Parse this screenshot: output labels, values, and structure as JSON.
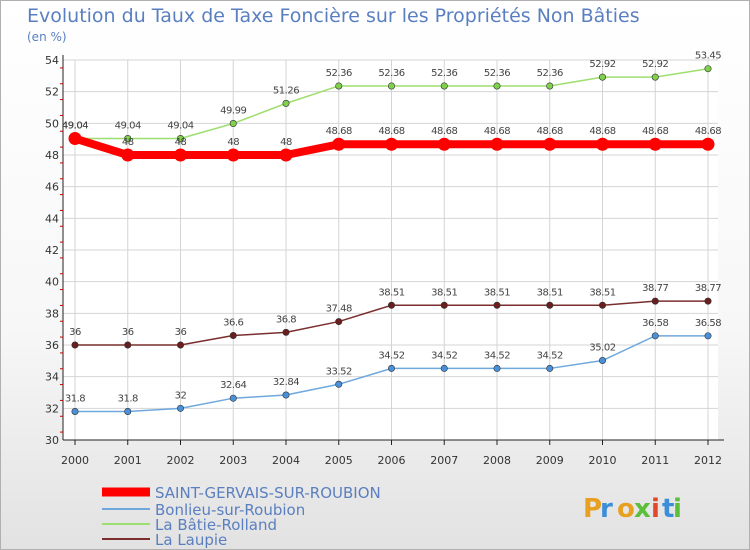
{
  "title": "Evolution du Taux de Taxe Foncière sur les Propriétés Non Bâties",
  "unit_label": "(en %)",
  "logo_text": "Proxiti",
  "chart_data": {
    "type": "line",
    "title": "Evolution du Taux de Taxe Foncière sur les Propriétés Non Bâties",
    "ylabel": "(en %)",
    "xlabel": "",
    "ylim": [
      30,
      54
    ],
    "yticks": [
      30,
      32,
      34,
      36,
      38,
      40,
      42,
      44,
      46,
      48,
      50,
      52,
      54
    ],
    "categories": [
      "2000",
      "2001",
      "2002",
      "2003",
      "2004",
      "2005",
      "2006",
      "2007",
      "2008",
      "2009",
      "2010",
      "2011",
      "2012"
    ],
    "grid": true,
    "legend_position": "bottom-left",
    "series": [
      {
        "name": "SAINT-GERVAIS-SUR-ROUBION",
        "color": "#ff0000",
        "bold": true,
        "values": [
          49.04,
          48,
          48,
          48,
          48,
          48.68,
          48.68,
          48.68,
          48.68,
          48.68,
          48.68,
          48.68,
          48.68
        ]
      },
      {
        "name": "Bonlieu-sur-Roubion",
        "color": "#6fa8dc",
        "marker": "#4a90d9",
        "values": [
          31.8,
          31.8,
          32,
          32.64,
          32.84,
          33.52,
          34.52,
          34.52,
          34.52,
          34.52,
          35.02,
          36.58,
          36.58
        ]
      },
      {
        "name": "La Bâtie-Rolland",
        "color": "#9ede6e",
        "marker": "#7fd04a",
        "values": [
          49.04,
          49.04,
          49.04,
          49.99,
          51.26,
          52.36,
          52.36,
          52.36,
          52.36,
          52.36,
          52.92,
          52.92,
          53.45
        ]
      },
      {
        "name": "La Laupie",
        "color": "#7a2e2e",
        "marker": "#6a1e1e",
        "values": [
          36,
          36,
          36,
          36.6,
          36.8,
          37.48,
          38.51,
          38.51,
          38.51,
          38.51,
          38.51,
          38.77,
          38.77
        ]
      }
    ]
  }
}
